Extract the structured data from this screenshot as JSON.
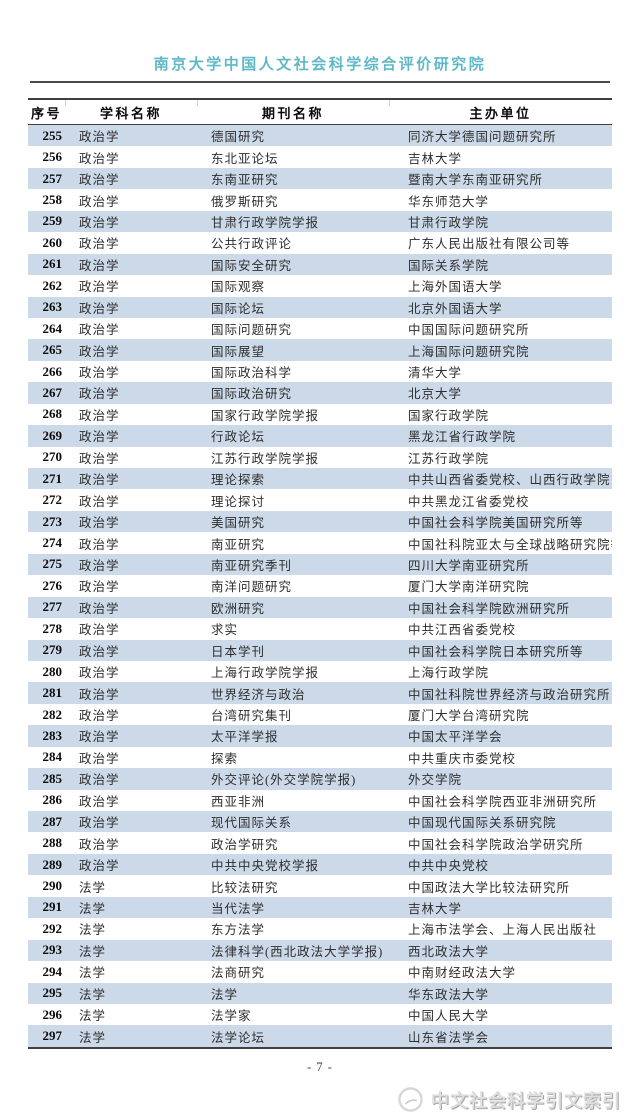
{
  "header": {
    "title": "南京大学中国人文社会科学综合评价研究院"
  },
  "table": {
    "columns": [
      "序号",
      "学科名称",
      "期刊名称",
      "主办单位"
    ],
    "rows": [
      [
        "255",
        "政治学",
        "德国研究",
        "同济大学德国问题研究所"
      ],
      [
        "256",
        "政治学",
        "东北亚论坛",
        "吉林大学"
      ],
      [
        "257",
        "政治学",
        "东南亚研究",
        "暨南大学东南亚研究所"
      ],
      [
        "258",
        "政治学",
        "俄罗斯研究",
        "华东师范大学"
      ],
      [
        "259",
        "政治学",
        "甘肃行政学院学报",
        "甘肃行政学院"
      ],
      [
        "260",
        "政治学",
        "公共行政评论",
        "广东人民出版社有限公司等"
      ],
      [
        "261",
        "政治学",
        "国际安全研究",
        "国际关系学院"
      ],
      [
        "262",
        "政治学",
        "国际观察",
        "上海外国语大学"
      ],
      [
        "263",
        "政治学",
        "国际论坛",
        "北京外国语大学"
      ],
      [
        "264",
        "政治学",
        "国际问题研究",
        "中国国际问题研究所"
      ],
      [
        "265",
        "政治学",
        "国际展望",
        "上海国际问题研究院"
      ],
      [
        "266",
        "政治学",
        "国际政治科学",
        "清华大学"
      ],
      [
        "267",
        "政治学",
        "国际政治研究",
        "北京大学"
      ],
      [
        "268",
        "政治学",
        "国家行政学院学报",
        "国家行政学院"
      ],
      [
        "269",
        "政治学",
        "行政论坛",
        "黑龙江省行政学院"
      ],
      [
        "270",
        "政治学",
        "江苏行政学院学报",
        "江苏行政学院"
      ],
      [
        "271",
        "政治学",
        "理论探索",
        "中共山西省委党校、山西行政学院"
      ],
      [
        "272",
        "政治学",
        "理论探讨",
        "中共黑龙江省委党校"
      ],
      [
        "273",
        "政治学",
        "美国研究",
        "中国社会科学院美国研究所等"
      ],
      [
        "274",
        "政治学",
        "南亚研究",
        "中国社科院亚太与全球战略研究院等"
      ],
      [
        "275",
        "政治学",
        "南亚研究季刊",
        "四川大学南亚研究所"
      ],
      [
        "276",
        "政治学",
        "南洋问题研究",
        "厦门大学南洋研究院"
      ],
      [
        "277",
        "政治学",
        "欧洲研究",
        "中国社会科学院欧洲研究所"
      ],
      [
        "278",
        "政治学",
        "求实",
        "中共江西省委党校"
      ],
      [
        "279",
        "政治学",
        "日本学刊",
        "中国社会科学院日本研究所等"
      ],
      [
        "280",
        "政治学",
        "上海行政学院学报",
        "上海行政学院"
      ],
      [
        "281",
        "政治学",
        "世界经济与政治",
        "中国社科院世界经济与政治研究所"
      ],
      [
        "282",
        "政治学",
        "台湾研究集刊",
        "厦门大学台湾研究院"
      ],
      [
        "283",
        "政治学",
        "太平洋学报",
        "中国太平洋学会"
      ],
      [
        "284",
        "政治学",
        "探索",
        "中共重庆市委党校"
      ],
      [
        "285",
        "政治学",
        "外交评论(外交学院学报)",
        "外交学院"
      ],
      [
        "286",
        "政治学",
        "西亚非洲",
        "中国社会科学院西亚非洲研究所"
      ],
      [
        "287",
        "政治学",
        "现代国际关系",
        "中国现代国际关系研究院"
      ],
      [
        "288",
        "政治学",
        "政治学研究",
        "中国社会科学院政治学研究所"
      ],
      [
        "289",
        "政治学",
        "中共中央党校学报",
        "中共中央党校"
      ],
      [
        "290",
        "法学",
        "比较法研究",
        "中国政法大学比较法研究所"
      ],
      [
        "291",
        "法学",
        "当代法学",
        "吉林大学"
      ],
      [
        "292",
        "法学",
        "东方法学",
        "上海市法学会、上海人民出版社"
      ],
      [
        "293",
        "法学",
        "法律科学(西北政法大学学报)",
        "西北政法大学"
      ],
      [
        "294",
        "法学",
        "法商研究",
        "中南财经政法大学"
      ],
      [
        "295",
        "法学",
        "法学",
        "华东政法大学"
      ],
      [
        "296",
        "法学",
        "法学家",
        "中国人民大学"
      ],
      [
        "297",
        "法学",
        "法学论坛",
        "山东省法学会"
      ]
    ]
  },
  "footer": {
    "page_number": "- 7 -",
    "watermark_text": "中文社会科学引文索引",
    "logo_icon": "cssci-logo-icon"
  },
  "colors": {
    "title": "#5fb8c6",
    "row_alt": "#ccd9e9",
    "border": "#3f3f3f",
    "watermark": "#dedede"
  }
}
